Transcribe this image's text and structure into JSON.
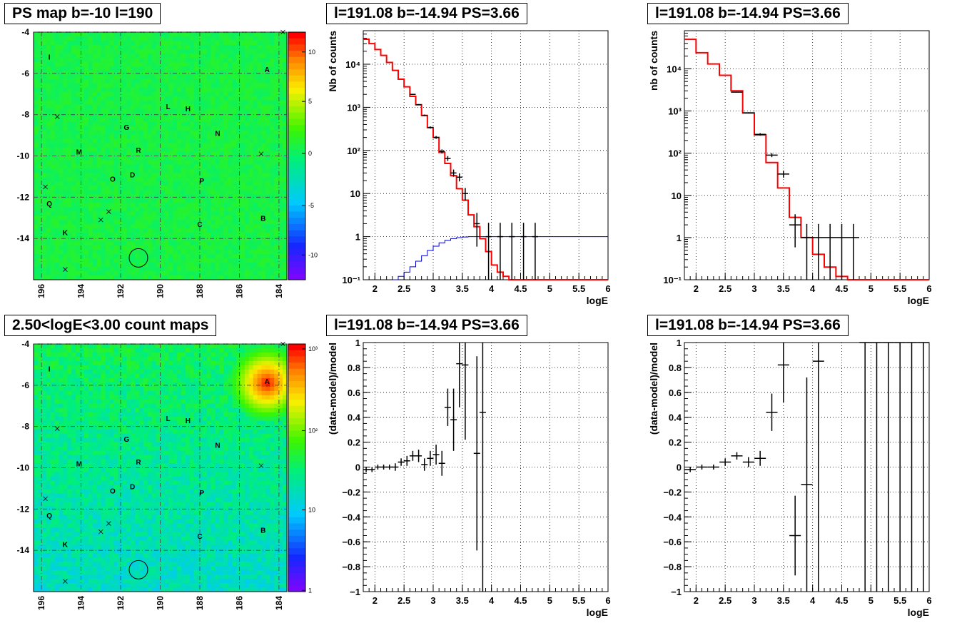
{
  "map_tl": {
    "title": "PS map b=-10 l=190",
    "x_ticks": [
      "196",
      "194",
      "192",
      "190",
      "188",
      "186",
      "184"
    ],
    "y_ticks": [
      "-4",
      "-6",
      "-8",
      "-10",
      "-12",
      "-14"
    ],
    "colorbar_ticks": [
      "10",
      "5",
      "0",
      "-5",
      "-10"
    ]
  },
  "map_bl": {
    "title": "2.50<logE<3.00 count maps",
    "x_ticks": [
      "196",
      "194",
      "192",
      "190",
      "188",
      "186",
      "184"
    ],
    "y_ticks": [
      "-4",
      "-6",
      "-8",
      "-10",
      "-12",
      "-14"
    ],
    "colorbar_ticks": [
      "10³",
      "10²",
      "10",
      "1"
    ]
  },
  "sources": [
    {
      "label": "I",
      "l": 195.6,
      "b": -5.2
    },
    {
      "label": "A",
      "l": 184.6,
      "b": -5.8
    },
    {
      "label": "L",
      "l": 189.6,
      "b": -7.6
    },
    {
      "label": "H",
      "l": 188.6,
      "b": -7.7
    },
    {
      "label": "G",
      "l": 191.7,
      "b": -8.6
    },
    {
      "label": "N",
      "l": 187.1,
      "b": -8.9
    },
    {
      "label": "M",
      "l": 194.1,
      "b": -9.8
    },
    {
      "label": "R",
      "l": 191.1,
      "b": -9.7
    },
    {
      "label": "D",
      "l": 191.4,
      "b": -10.9
    },
    {
      "label": "O",
      "l": 192.4,
      "b": -11.1
    },
    {
      "label": "P",
      "l": 187.9,
      "b": -11.2
    },
    {
      "label": "Q",
      "l": 195.6,
      "b": -12.3
    },
    {
      "label": "B",
      "l": 184.8,
      "b": -13.0
    },
    {
      "label": "C",
      "l": 188.0,
      "b": -13.3
    },
    {
      "label": "K",
      "l": 194.8,
      "b": -13.7
    }
  ],
  "crosses": [
    {
      "l": 183.8,
      "b": -4.0
    },
    {
      "l": 195.2,
      "b": -8.1
    },
    {
      "l": 184.9,
      "b": -9.9
    },
    {
      "l": 195.8,
      "b": -11.5
    },
    {
      "l": 192.6,
      "b": -12.7
    },
    {
      "l": 193.0,
      "b": -13.1
    },
    {
      "l": 194.8,
      "b": -15.5
    }
  ],
  "roi_circle": {
    "l": 191.1,
    "b": -14.94
  },
  "spec_tm": {
    "title": "l=191.08 b=-14.94 PS=3.66",
    "ylabel": "Nb of counts",
    "xlabel": "logE"
  },
  "spec_tr": {
    "title": "l=191.08 b=-14.94 PS=3.66",
    "ylabel": "nb of counts",
    "xlabel": "logE"
  },
  "res_bm": {
    "title": "l=191.08 b=-14.94 PS=3.66",
    "ylabel": "(data-model)/model",
    "xlabel": "logE"
  },
  "res_br": {
    "title": "l=191.08 b=-14.94 PS=3.66",
    "ylabel": "(data-model)/model",
    "xlabel": "logE"
  },
  "colors": {
    "model": "#ff0000",
    "background": "#0000cc",
    "data": "#000000"
  },
  "chart_data": [
    {
      "type": "line",
      "title": "l=191.08 b=-14.94 PS=3.66",
      "xlabel": "logE",
      "ylabel": "Nb of counts",
      "xlim": [
        1.8,
        6
      ],
      "ylim": [
        0.1,
        60000
      ],
      "log_y": true,
      "grid": true,
      "x_ticks": [
        "2",
        "2.5",
        "3",
        "3.5",
        "4",
        "4.5",
        "5",
        "5.5",
        "6"
      ],
      "y_ticks": [
        "10⁻¹",
        "1",
        "10",
        "10²",
        "10³",
        "10⁴"
      ],
      "bin_width": 0.1,
      "series": [
        {
          "name": "model",
          "x": [
            1.8,
            1.9,
            2.0,
            2.1,
            2.2,
            2.3,
            2.4,
            2.5,
            2.6,
            2.7,
            2.8,
            2.9,
            3.0,
            3.1,
            3.2,
            3.3,
            3.4,
            3.5,
            3.6,
            3.7,
            3.8,
            3.9,
            4.0,
            4.1,
            4.2,
            4.3,
            4.4,
            4.5,
            4.6,
            4.7,
            4.8,
            4.9,
            5.0,
            5.1,
            5.2,
            5.3,
            5.4,
            5.5,
            5.6,
            5.7,
            5.8,
            5.9
          ],
          "y": [
            38000,
            30000,
            22000,
            16000,
            11000,
            7200,
            4500,
            3000,
            1800,
            1150,
            650,
            340,
            200,
            90,
            50,
            26,
            13,
            7,
            3.2,
            1.7,
            0.9,
            0.45,
            0.22,
            0.15,
            0.12,
            0.1,
            0.1,
            0.1,
            0.1,
            0.1,
            0.1,
            0.1,
            0.1,
            0.1,
            0.1,
            0.1,
            0.1,
            0.1,
            0.1,
            0.1,
            0.1,
            0.1
          ]
        },
        {
          "name": "background",
          "x": [
            2.3,
            2.4,
            2.5,
            2.6,
            2.7,
            2.8,
            2.9,
            3.0,
            3.1,
            3.2,
            3.3,
            3.4,
            3.5,
            3.6,
            3.7,
            3.8,
            3.9,
            4.0,
            4.1,
            4.2,
            4.3,
            4.4,
            4.5,
            4.6,
            4.7,
            4.8,
            4.9,
            5.0,
            5.1,
            5.2,
            5.3,
            5.4,
            5.5,
            5.6,
            5.7,
            5.8,
            5.9
          ],
          "y": [
            0.1,
            0.12,
            0.15,
            0.2,
            0.27,
            0.36,
            0.48,
            0.6,
            0.72,
            0.82,
            0.9,
            0.95,
            0.98,
            1,
            1,
            1,
            1,
            1,
            1,
            1,
            1,
            1,
            1,
            1,
            1,
            1,
            1,
            1,
            1,
            1,
            1,
            1,
            1,
            1,
            1,
            1,
            1
          ]
        },
        {
          "name": "data",
          "x": [
            2.65,
            2.75,
            2.85,
            2.95,
            3.05,
            3.15,
            3.25,
            3.35,
            3.45,
            3.55,
            3.75,
            3.95,
            4.15,
            4.35,
            4.55,
            4.75
          ],
          "y": [
            2000,
            1150,
            650,
            340,
            200,
            95,
            65,
            30,
            24,
            10,
            2,
            1,
            1,
            1,
            1,
            1
          ]
        }
      ]
    },
    {
      "type": "line",
      "title": "l=191.08 b=-14.94 PS=3.66",
      "xlabel": "logE",
      "ylabel": "nb of counts",
      "xlim": [
        1.8,
        6
      ],
      "ylim": [
        0.1,
        80000
      ],
      "log_y": true,
      "grid": true,
      "x_ticks": [
        "2",
        "2.5",
        "3",
        "3.5",
        "4",
        "4.5",
        "5",
        "5.5",
        "6"
      ],
      "y_ticks": [
        "10⁻¹",
        "1",
        "10",
        "10²",
        "10³",
        "10⁴"
      ],
      "bin_width": 0.2,
      "series": [
        {
          "name": "model",
          "x": [
            1.8,
            2.0,
            2.2,
            2.4,
            2.6,
            2.8,
            3.0,
            3.2,
            3.4,
            3.6,
            3.8,
            4.0,
            4.2,
            4.4,
            4.6,
            4.8,
            5.0,
            5.2,
            5.4,
            5.6,
            5.8
          ],
          "y": [
            50000,
            24000,
            13000,
            7000,
            3000,
            900,
            270,
            60,
            15,
            3,
            1,
            0.4,
            0.2,
            0.12,
            0.1,
            0.1,
            0.1,
            0.1,
            0.1,
            0.1,
            0.1
          ]
        },
        {
          "name": "data",
          "x": [
            2.7,
            2.9,
            3.1,
            3.3,
            3.5,
            3.7,
            3.9,
            4.1,
            4.3,
            4.5,
            4.7
          ],
          "y": [
            2800,
            900,
            280,
            90,
            32,
            2,
            1,
            1,
            1,
            1,
            1
          ]
        }
      ]
    },
    {
      "type": "scatter",
      "title": "l=191.08 b=-14.94 PS=3.66",
      "xlabel": "logE",
      "ylabel": "(data-model)/model",
      "xlim": [
        1.8,
        6
      ],
      "ylim": [
        -1,
        1
      ],
      "grid": true,
      "x_ticks": [
        "2",
        "2.5",
        "3",
        "3.5",
        "4",
        "4.5",
        "5",
        "5.5",
        "6"
      ],
      "y_ticks": [
        "−1",
        "−0.8",
        "−0.6",
        "−0.4",
        "−0.2",
        "0",
        "0.2",
        "0.4",
        "0.6",
        "0.8",
        "1"
      ],
      "points": [
        {
          "x": 1.85,
          "y": -0.02,
          "err": 0.02
        },
        {
          "x": 1.95,
          "y": -0.02,
          "err": 0.02
        },
        {
          "x": 2.05,
          "y": 0.0,
          "err": 0.02
        },
        {
          "x": 2.15,
          "y": 0.0,
          "err": 0.02
        },
        {
          "x": 2.25,
          "y": 0.0,
          "err": 0.02
        },
        {
          "x": 2.35,
          "y": 0.0,
          "err": 0.03
        },
        {
          "x": 2.45,
          "y": 0.04,
          "err": 0.03
        },
        {
          "x": 2.55,
          "y": 0.05,
          "err": 0.04
        },
        {
          "x": 2.65,
          "y": 0.09,
          "err": 0.04
        },
        {
          "x": 2.75,
          "y": 0.09,
          "err": 0.05
        },
        {
          "x": 2.85,
          "y": 0.02,
          "err": 0.05
        },
        {
          "x": 2.95,
          "y": 0.07,
          "err": 0.06
        },
        {
          "x": 3.05,
          "y": 0.1,
          "err": 0.08
        },
        {
          "x": 3.15,
          "y": 0.03,
          "err": 0.1
        },
        {
          "x": 3.25,
          "y": 0.48,
          "err": 0.15
        },
        {
          "x": 3.35,
          "y": 0.38,
          "err": 0.25
        },
        {
          "x": 3.45,
          "y": 0.83,
          "err": 0.35
        },
        {
          "x": 3.55,
          "y": 0.82,
          "err": 0.6
        },
        {
          "x": 3.75,
          "y": 0.11,
          "err": 0.78
        },
        {
          "x": 3.85,
          "y": 0.44,
          "err": 1.6
        }
      ]
    },
    {
      "type": "scatter",
      "title": "l=191.08 b=-14.94 PS=3.66",
      "xlabel": "logE",
      "ylabel": "(data-model)/model",
      "xlim": [
        1.8,
        6
      ],
      "ylim": [
        -1,
        1
      ],
      "grid": true,
      "x_ticks": [
        "2",
        "2.5",
        "3",
        "3.5",
        "4",
        "4.5",
        "5",
        "5.5",
        "6"
      ],
      "y_ticks": [
        "−1",
        "−0.8",
        "−0.6",
        "−0.4",
        "−0.2",
        "0",
        "0.2",
        "0.4",
        "0.6",
        "0.8",
        "1"
      ],
      "points": [
        {
          "x": 1.9,
          "y": -0.02,
          "err": 0.02
        },
        {
          "x": 2.1,
          "y": 0.0,
          "err": 0.02
        },
        {
          "x": 2.3,
          "y": 0.0,
          "err": 0.02
        },
        {
          "x": 2.5,
          "y": 0.04,
          "err": 0.03
        },
        {
          "x": 2.7,
          "y": 0.09,
          "err": 0.03
        },
        {
          "x": 2.9,
          "y": 0.04,
          "err": 0.04
        },
        {
          "x": 3.1,
          "y": 0.07,
          "err": 0.06
        },
        {
          "x": 3.3,
          "y": 0.44,
          "err": 0.15
        },
        {
          "x": 3.5,
          "y": 0.82,
          "err": 0.3
        },
        {
          "x": 3.7,
          "y": -0.55,
          "err": 0.32
        },
        {
          "x": 3.9,
          "y": -0.14,
          "err": 0.86
        },
        {
          "x": 4.1,
          "y": 0.85,
          "err": 1.9
        },
        {
          "x": 4.9,
          "y": 1,
          "err": 2
        },
        {
          "x": 5.1,
          "y": 1,
          "err": 2
        },
        {
          "x": 5.3,
          "y": 1,
          "err": 2
        },
        {
          "x": 5.5,
          "y": 1,
          "err": 2
        },
        {
          "x": 5.7,
          "y": 1,
          "err": 2
        },
        {
          "x": 5.9,
          "y": 1,
          "err": 2
        }
      ]
    }
  ]
}
